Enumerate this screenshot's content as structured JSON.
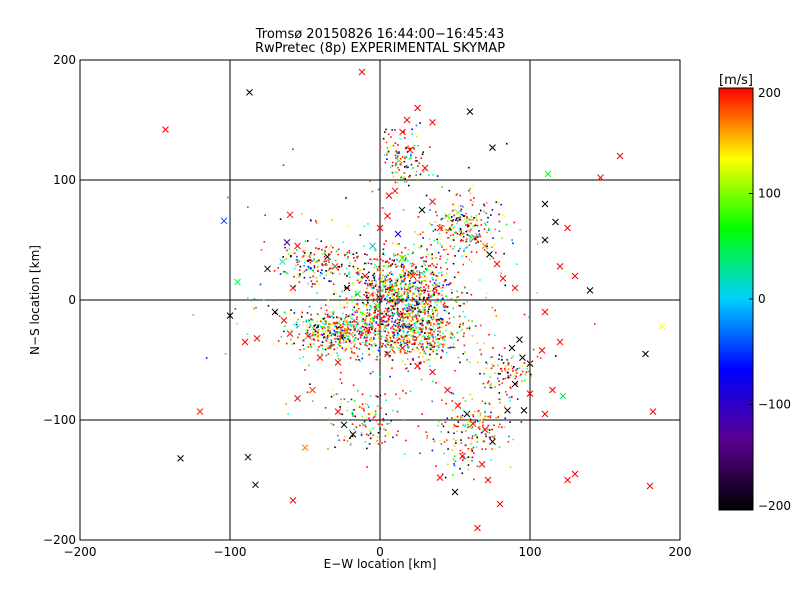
{
  "chart_data": {
    "type": "scatter",
    "title": "Tromsø 20150826 16:44:00−16:45:43",
    "subtitle": "RwPretec (8p) EXPERIMENTAL SKYMAP",
    "xlabel": "E−W location [km]",
    "ylabel": "N−S location [km]",
    "xlim": [
      -200,
      200
    ],
    "ylim": [
      -200,
      200
    ],
    "x_ticks": [
      -200,
      -100,
      0,
      100,
      200
    ],
    "y_ticks": [
      -200,
      -100,
      0,
      100,
      200
    ],
    "x_tick_labels": [
      "−200",
      "−100",
      "0",
      "100",
      "200"
    ],
    "y_tick_labels": [
      "−200",
      "−100",
      "0",
      "100",
      "200"
    ],
    "grid_lines_at": [
      -100,
      0,
      100
    ],
    "colorbar": {
      "label": "[m/s]",
      "range": [
        -200,
        200
      ],
      "ticks": [
        200,
        100,
        0,
        -100,
        -200
      ],
      "tick_labels": [
        "200",
        "100",
        "0",
        "−100",
        "−200"
      ],
      "stops": [
        "#000000",
        "#5a0090",
        "#0000ff",
        "#00d0ff",
        "#00ff00",
        "#ffff00",
        "#ff0000"
      ]
    },
    "marker_legend": "small dots and x markers coloured by velocity",
    "series": [
      {
        "marker": "x",
        "points": [
          [
            -143,
            142
          ],
          [
            -104,
            66
          ],
          [
            -87,
            173
          ],
          [
            -133,
            -132
          ],
          [
            -120,
            -93
          ],
          [
            -88,
            -131
          ],
          [
            -83,
            -154
          ],
          [
            -58,
            -167
          ],
          [
            -50,
            -123
          ],
          [
            -60,
            71
          ],
          [
            -62,
            48
          ],
          [
            -55,
            45
          ],
          [
            -65,
            32
          ],
          [
            -75,
            26
          ],
          [
            -58,
            10
          ],
          [
            -95,
            15
          ],
          [
            -100,
            -13
          ],
          [
            -90,
            -35
          ],
          [
            -82,
            -32
          ],
          [
            -70,
            -10
          ],
          [
            -64,
            -17
          ],
          [
            -60,
            -28
          ],
          [
            -48,
            -30
          ],
          [
            -40,
            -48
          ],
          [
            -28,
            -52
          ],
          [
            -35,
            36
          ],
          [
            -30,
            28
          ],
          [
            -22,
            10
          ],
          [
            -15,
            5
          ],
          [
            -8,
            -25
          ],
          [
            -28,
            -93
          ],
          [
            -18,
            -112
          ],
          [
            -24,
            -104
          ],
          [
            -45,
            -75
          ],
          [
            -55,
            -82
          ],
          [
            6,
            87
          ],
          [
            10,
            91
          ],
          [
            15,
            140
          ],
          [
            18,
            150
          ],
          [
            25,
            160
          ],
          [
            20,
            125
          ],
          [
            30,
            110
          ],
          [
            28,
            75
          ],
          [
            35,
            82
          ],
          [
            40,
            60
          ],
          [
            45,
            70
          ],
          [
            52,
            73
          ],
          [
            58,
            66
          ],
          [
            63,
            52
          ],
          [
            70,
            45
          ],
          [
            73,
            38
          ],
          [
            78,
            30
          ],
          [
            82,
            18
          ],
          [
            90,
            10
          ],
          [
            -5,
            45
          ],
          [
            0,
            60
          ],
          [
            5,
            70
          ],
          [
            12,
            55
          ],
          [
            15,
            35
          ],
          [
            22,
            20
          ],
          [
            8,
            10
          ],
          [
            -10,
            20
          ],
          [
            -2,
            -5
          ],
          [
            5,
            -45
          ],
          [
            15,
            -40
          ],
          [
            25,
            -55
          ],
          [
            35,
            -60
          ],
          [
            45,
            -75
          ],
          [
            52,
            -88
          ],
          [
            58,
            -95
          ],
          [
            62,
            -103
          ],
          [
            70,
            -108
          ],
          [
            75,
            -118
          ],
          [
            68,
            -137
          ],
          [
            72,
            -150
          ],
          [
            80,
            -170
          ],
          [
            65,
            -190
          ],
          [
            50,
            -160
          ],
          [
            40,
            -148
          ],
          [
            55,
            -130
          ],
          [
            85,
            -92
          ],
          [
            90,
            -70
          ],
          [
            100,
            -53
          ],
          [
            95,
            -48
          ],
          [
            88,
            -40
          ],
          [
            93,
            -33
          ],
          [
            112,
            105
          ],
          [
            117,
            65
          ],
          [
            110,
            80
          ],
          [
            125,
            60
          ],
          [
            110,
            50
          ],
          [
            120,
            28
          ],
          [
            130,
            20
          ],
          [
            140,
            8
          ],
          [
            110,
            -10
          ],
          [
            120,
            -35
          ],
          [
            108,
            -42
          ],
          [
            115,
            -75
          ],
          [
            122,
            -80
          ],
          [
            110,
            -95
          ],
          [
            160,
            120
          ],
          [
            147,
            102
          ],
          [
            177,
            -45
          ],
          [
            180,
            -155
          ],
          [
            188,
            -22
          ],
          [
            182,
            -93
          ],
          [
            130,
            -145
          ],
          [
            125,
            -150
          ],
          [
            60,
            157
          ],
          [
            75,
            127
          ],
          [
            100,
            -78
          ],
          [
            96,
            -92
          ],
          [
            -12,
            190
          ],
          [
            35,
            148
          ]
        ],
        "colors": [
          "#ff0000",
          "#0040ff",
          "#000000",
          "#000000",
          "#ff2000",
          "#000000",
          "#000000",
          "#ff0000",
          "#ff8000",
          "#ff0000",
          "#3000a0",
          "#ff0000",
          "#00ffc0",
          "#000000",
          "#ff0000",
          "#00ff40",
          "#000000",
          "#ff0000",
          "#ff0000",
          "#000000",
          "#ff0000",
          "#ff0000",
          "#ff0000",
          "#ff0000",
          "#ff0000",
          "#000000",
          "#ff0000",
          "#000000",
          "#00ff00",
          "#ff0000",
          "#ff0000",
          "#000000",
          "#000000",
          "#ff4000",
          "#ff0000",
          "#ff0000",
          "#ff0000",
          "#ff0000",
          "#ff0000",
          "#ff0000",
          "#ff0000",
          "#ff0000",
          "#000000",
          "#ff0000",
          "#ff2000",
          "#80ff40",
          "#80ff40",
          "#80ff40",
          "#ff4000",
          "#ff8000",
          "#000000",
          "#ff0000",
          "#ff0000",
          "#ff0000",
          "#00c0ff",
          "#ff0000",
          "#ff0000",
          "#0000ff",
          "#00ff00",
          "#ff0000",
          "#00ff00",
          "#ff0000",
          "#00ff00",
          "#ff0000",
          "#ff0000",
          "#ff0000",
          "#ff0000",
          "#ff0000",
          "#ff0000",
          "#000000",
          "#ff0000",
          "#ff0000",
          "#000000",
          "#ff0000",
          "#ff0000",
          "#ff0000",
          "#ff0000",
          "#000000",
          "#ff0000",
          "#ff0000",
          "#000000",
          "#000000",
          "#000000",
          "#000000",
          "#000000",
          "#000000",
          "#00ff00",
          "#000000",
          "#000000",
          "#ff0000",
          "#000000",
          "#ff0000",
          "#ff0000",
          "#000000",
          "#ff0000",
          "#ff0000",
          "#ff0000",
          "#ff0000",
          "#00ff40",
          "#ff0000",
          "#ff0000",
          "#ff0000",
          "#000000",
          "#ff0000",
          "#ffff00",
          "#ff0000",
          "#ff0000",
          "#ff0000",
          "#000000",
          "#000000",
          "#ff0000",
          "#000000",
          "#ff0000",
          "#ff0000"
        ]
      }
    ]
  }
}
